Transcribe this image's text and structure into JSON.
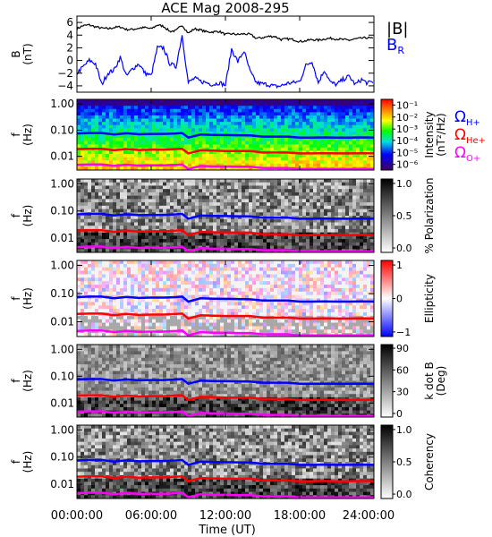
{
  "title": "ACE Mag 2008-295",
  "xlabel": "Time (UT)",
  "x_ticks": [
    "00:00:00",
    "06:00:00",
    "12:00:00",
    "18:00:00",
    "24:00:00"
  ],
  "freq_ticks": [
    "1.00",
    "0.10",
    "0.01"
  ],
  "colors": {
    "B_total": "#000000",
    "B_R": "#0000ff",
    "H": "#0000ff",
    "He": "#ff0000",
    "O": "#ff00ff"
  },
  "panels": [
    {
      "id": "B",
      "ylabel": [
        "B",
        "(nT)"
      ],
      "colorbar": null
    },
    {
      "id": "intensity",
      "ylabel": [
        "f",
        "(Hz)"
      ],
      "colorbar": {
        "label": [
          "Intensity",
          "(nT²/Hz)"
        ],
        "colormap": "rainbow",
        "ticks": [
          "10⁻¹",
          "10⁻²",
          "10⁻³",
          "10⁻⁴",
          "10⁻⁵",
          "10⁻⁶"
        ],
        "tick_fracs": [
          0.08,
          0.25,
          0.42,
          0.58,
          0.75,
          0.92
        ]
      }
    },
    {
      "id": "polarization",
      "ylabel": [
        "f",
        "(Hz)"
      ],
      "colorbar": {
        "label": [
          "% Polarization"
        ],
        "colormap": "gray",
        "ticks": [
          "1.0",
          "0.5",
          "0.0"
        ],
        "tick_fracs": [
          0.06,
          0.5,
          0.94
        ]
      }
    },
    {
      "id": "ellipticity",
      "ylabel": [
        "f",
        "(Hz)"
      ],
      "colorbar": {
        "label": [
          "Ellipticity"
        ],
        "colormap": "bwr",
        "ticks": [
          "1",
          "0",
          "−1"
        ],
        "tick_fracs": [
          0.06,
          0.5,
          0.94
        ]
      }
    },
    {
      "id": "kdotb",
      "ylabel": [
        "f",
        "(Hz)"
      ],
      "colorbar": {
        "label": [
          "k dot B",
          "(Deg)"
        ],
        "colormap": "gray",
        "ticks": [
          "90",
          "60",
          "30",
          "0"
        ],
        "tick_fracs": [
          0.05,
          0.35,
          0.65,
          0.95
        ]
      }
    },
    {
      "id": "coherency",
      "ylabel": [
        "f",
        "(Hz)"
      ],
      "colorbar": {
        "label": [
          "Coherency"
        ],
        "colormap": "gray",
        "ticks": [
          "1.0",
          "0.5",
          "0.0"
        ],
        "tick_fracs": [
          0.06,
          0.5,
          0.94
        ]
      }
    }
  ],
  "legend_B": [
    {
      "label": "|B|",
      "color": "#000000"
    },
    {
      "label": "B",
      "sub": "R",
      "color": "#0000ff"
    }
  ],
  "legend_gyro": [
    {
      "label": "Ω",
      "sub": "H+",
      "color": "#0000ff"
    },
    {
      "label": "Ω",
      "sub": "He+",
      "color": "#ff0000"
    },
    {
      "label": "Ω",
      "sub": "O+",
      "color": "#ff00ff"
    }
  ],
  "chart_data": {
    "type": "line",
    "title": "ACE Mag 2008-295",
    "xlabel": "Time (UT)",
    "xlim": [
      0,
      24
    ],
    "B_panel": {
      "ylabel": "B (nT)",
      "ylim": [
        -5,
        7
      ],
      "yticks": [
        6,
        4,
        2,
        0,
        -2,
        -4
      ],
      "x_hours": [
        0,
        0.5,
        1,
        1.5,
        2,
        2.5,
        3,
        3.5,
        4,
        4.5,
        5,
        5.5,
        6,
        6.5,
        7,
        7.5,
        8,
        8.5,
        9,
        9.5,
        10,
        10.5,
        11,
        11.5,
        12,
        12.5,
        13,
        13.5,
        14,
        14.5,
        15,
        15.5,
        16,
        16.5,
        17,
        17.5,
        18,
        18.5,
        19,
        19.5,
        20,
        20.5,
        21,
        21.5,
        22,
        22.5,
        23,
        23.5,
        24
      ],
      "series": [
        {
          "name": "|B|",
          "values": [
            5.0,
            5.5,
            5.6,
            5.3,
            5.1,
            5.0,
            5.2,
            5.3,
            4.9,
            4.9,
            5.1,
            5.2,
            5.0,
            5.6,
            5.4,
            4.6,
            4.7,
            5.6,
            4.3,
            5.0,
            4.8,
            4.5,
            4.5,
            4.6,
            4.1,
            4.2,
            4.1,
            4.2,
            4.1,
            3.5,
            3.6,
            3.8,
            3.8,
            3.3,
            3.4,
            3.3,
            3.0,
            3.1,
            3.3,
            3.2,
            3.4,
            3.5,
            3.4,
            3.3,
            3.2,
            3.4,
            3.5,
            3.6,
            3.4
          ]
        },
        {
          "name": "B_R",
          "values": [
            -2.0,
            -1.0,
            0.0,
            -0.5,
            -3.8,
            -2.0,
            -1.5,
            0.5,
            -2.5,
            -1.3,
            -0.5,
            -2.0,
            -2.4,
            2.0,
            2.0,
            -0.5,
            -1.0,
            4.0,
            -3.5,
            -2.8,
            -3.3,
            -3.5,
            -3.8,
            -3.5,
            -3.9,
            1.8,
            -0.2,
            1.5,
            -1.8,
            -3.5,
            -3.7,
            -3.8,
            -4.1,
            -4.0,
            -3.6,
            -3.5,
            -3.3,
            -0.8,
            -0.1,
            -3.5,
            -1.5,
            -3.5,
            -3.8,
            -3.0,
            -2.5,
            -3.8,
            -3.0,
            -3.6,
            -3.3
          ]
        }
      ]
    },
    "frequency_panels": {
      "ylabel": "f (Hz)",
      "scale": "log",
      "ylim": [
        0.003,
        1.5
      ],
      "yticks": [
        1.0,
        0.1,
        0.01
      ],
      "x_hours": [
        0,
        1,
        2,
        3,
        4,
        5,
        6,
        7,
        8,
        8.5,
        9,
        10,
        11,
        12,
        13,
        14,
        15,
        16,
        17,
        18,
        19,
        20,
        21,
        22,
        23,
        24
      ],
      "gyrofrequencies": [
        {
          "name": "H+",
          "values": [
            0.075,
            0.078,
            0.078,
            0.068,
            0.076,
            0.07,
            0.072,
            0.072,
            0.075,
            0.078,
            0.052,
            0.068,
            0.066,
            0.065,
            0.064,
            0.063,
            0.057,
            0.057,
            0.057,
            0.052,
            0.052,
            0.053,
            0.052,
            0.052,
            0.053,
            0.052
          ]
        },
        {
          "name": "He+",
          "values": [
            0.019,
            0.0195,
            0.0195,
            0.017,
            0.019,
            0.0175,
            0.018,
            0.018,
            0.019,
            0.0195,
            0.013,
            0.017,
            0.0165,
            0.016,
            0.016,
            0.016,
            0.014,
            0.014,
            0.014,
            0.013,
            0.013,
            0.0133,
            0.013,
            0.013,
            0.0133,
            0.013
          ]
        },
        {
          "name": "O+",
          "values": [
            0.0047,
            0.0049,
            0.0049,
            0.0043,
            0.0048,
            0.0044,
            0.0045,
            0.0045,
            0.0047,
            0.0049,
            0.0033,
            0.0043,
            0.0041,
            0.0041,
            0.004,
            0.004,
            0.0036,
            0.0036,
            0.0036,
            0.0033,
            0.0033,
            0.0033,
            0.0033,
            0.0033,
            0.0033,
            0.0033
          ]
        }
      ]
    }
  }
}
